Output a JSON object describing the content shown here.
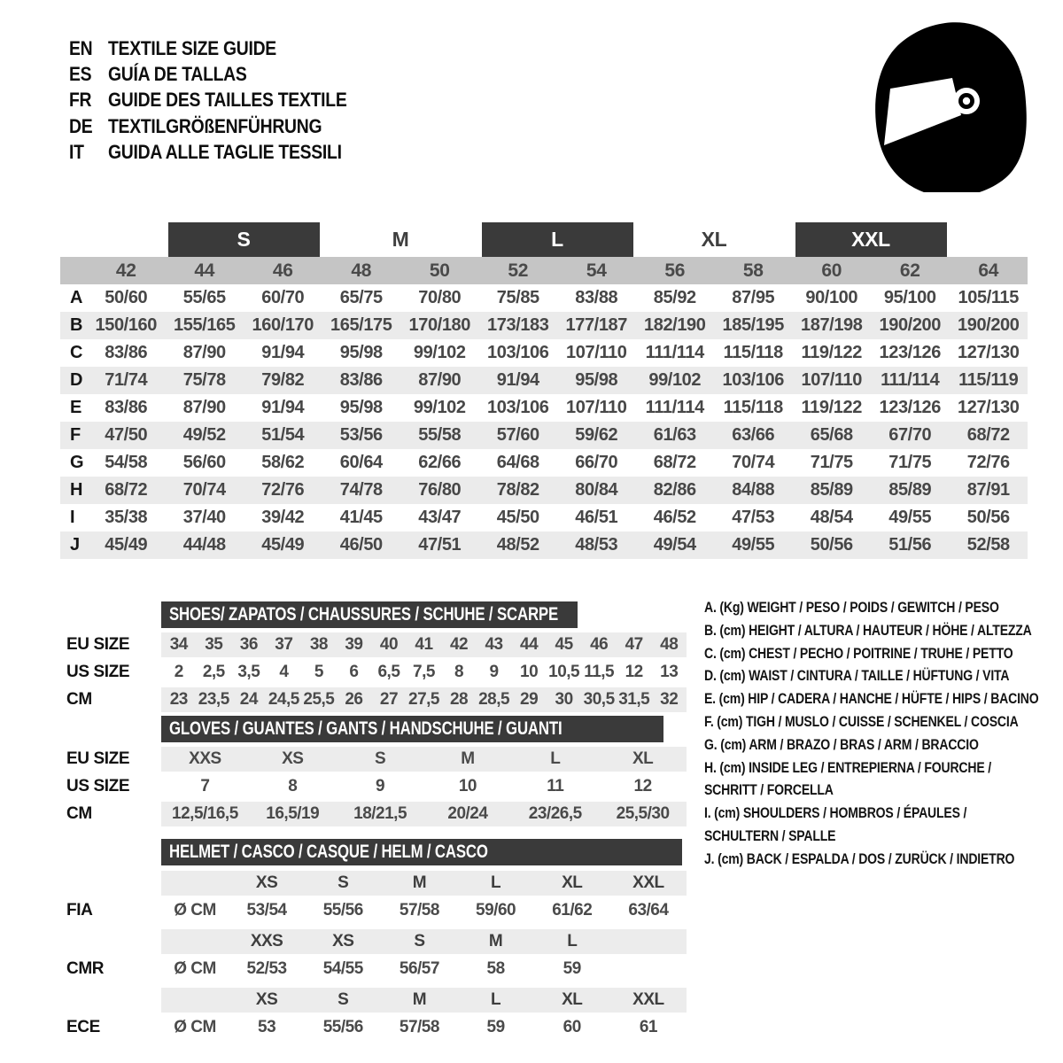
{
  "header": {
    "languages": [
      {
        "code": "EN",
        "title": "TEXTILE SIZE GUIDE"
      },
      {
        "code": "ES",
        "title": "GUÍA DE TALLAS"
      },
      {
        "code": "FR",
        "title": "GUIDE DES TAILLES TEXTILE"
      },
      {
        "code": "DE",
        "title": "TEXTILGRÖßENFÜHRUNG"
      },
      {
        "code": "IT",
        "title": "GUIDA ALLE TAGLIE TESSILI"
      }
    ],
    "icon": "racing-helmet"
  },
  "colors": {
    "bar": "#3a3a3a",
    "number_band": "#c5c5c5",
    "stripe": "#ebebeb",
    "bar_text": "#ffffff",
    "value_text": "#474747"
  },
  "size_table": {
    "size_bands": [
      {
        "label": "S",
        "style": "block"
      },
      {
        "label": "M",
        "style": "text"
      },
      {
        "label": "L",
        "style": "block"
      },
      {
        "label": "XL",
        "style": "text"
      },
      {
        "label": "XXL",
        "style": "block"
      }
    ],
    "columns": [
      "42",
      "44",
      "46",
      "48",
      "50",
      "52",
      "54",
      "56",
      "58",
      "60",
      "62",
      "64"
    ],
    "rows": [
      {
        "label": "A",
        "values": [
          "50/60",
          "55/65",
          "60/70",
          "65/75",
          "70/80",
          "75/85",
          "83/88",
          "85/92",
          "87/95",
          "90/100",
          "95/100",
          "105/115"
        ]
      },
      {
        "label": "B",
        "values": [
          "150/160",
          "155/165",
          "160/170",
          "165/175",
          "170/180",
          "173/183",
          "177/187",
          "182/190",
          "185/195",
          "187/198",
          "190/200",
          "190/200"
        ]
      },
      {
        "label": "C",
        "values": [
          "83/86",
          "87/90",
          "91/94",
          "95/98",
          "99/102",
          "103/106",
          "107/110",
          "111/114",
          "115/118",
          "119/122",
          "123/126",
          "127/130"
        ]
      },
      {
        "label": "D",
        "values": [
          "71/74",
          "75/78",
          "79/82",
          "83/86",
          "87/90",
          "91/94",
          "95/98",
          "99/102",
          "103/106",
          "107/110",
          "111/114",
          "115/119"
        ]
      },
      {
        "label": "E",
        "values": [
          "83/86",
          "87/90",
          "91/94",
          "95/98",
          "99/102",
          "103/106",
          "107/110",
          "111/114",
          "115/118",
          "119/122",
          "123/126",
          "127/130"
        ]
      },
      {
        "label": "F",
        "values": [
          "47/50",
          "49/52",
          "51/54",
          "53/56",
          "55/58",
          "57/60",
          "59/62",
          "61/63",
          "63/66",
          "65/68",
          "67/70",
          "68/72"
        ]
      },
      {
        "label": "G",
        "values": [
          "54/58",
          "56/60",
          "58/62",
          "60/64",
          "62/66",
          "64/68",
          "66/70",
          "68/72",
          "70/74",
          "71/75",
          "71/75",
          "72/76"
        ]
      },
      {
        "label": "H",
        "values": [
          "68/72",
          "70/74",
          "72/76",
          "74/78",
          "76/80",
          "78/82",
          "80/84",
          "82/86",
          "84/88",
          "85/89",
          "85/89",
          "87/91"
        ]
      },
      {
        "label": "I",
        "values": [
          "35/38",
          "37/40",
          "39/42",
          "41/45",
          "43/47",
          "45/50",
          "46/51",
          "46/52",
          "47/53",
          "48/54",
          "49/55",
          "50/56"
        ]
      },
      {
        "label": "J",
        "values": [
          "45/49",
          "44/48",
          "45/49",
          "46/50",
          "47/51",
          "48/52",
          "48/53",
          "49/54",
          "49/55",
          "50/56",
          "51/56",
          "52/58"
        ]
      }
    ]
  },
  "shoes_table": {
    "title": "SHOES/ ZAPATOS / CHAUSSURES / SCHUHE / SCARPE",
    "rows": [
      {
        "label": "EU SIZE",
        "values": [
          "34",
          "35",
          "36",
          "37",
          "38",
          "39",
          "40",
          "41",
          "42",
          "43",
          "44",
          "45",
          "46",
          "47",
          "48"
        ]
      },
      {
        "label": "US SIZE",
        "values": [
          "2",
          "2,5",
          "3,5",
          "4",
          "5",
          "6",
          "6,5",
          "7,5",
          "8",
          "9",
          "10",
          "10,5",
          "11,5",
          "12",
          "13"
        ]
      },
      {
        "label": "CM",
        "values": [
          "23",
          "23,5",
          "24",
          "24,5",
          "25,5",
          "26",
          "27",
          "27,5",
          "28",
          "28,5",
          "29",
          "30",
          "30,5",
          "31,5",
          "32"
        ]
      }
    ]
  },
  "gloves_table": {
    "title": "GLOVES / GUANTES / GANTS / HANDSCHUHE / GUANTI",
    "rows": [
      {
        "label": "EU SIZE",
        "values": [
          "XXS",
          "XS",
          "S",
          "M",
          "L",
          "XL"
        ]
      },
      {
        "label": "US SIZE",
        "values": [
          "7",
          "8",
          "9",
          "10",
          "11",
          "12"
        ]
      },
      {
        "label": "CM",
        "values": [
          "12,5/16,5",
          "16,5/19",
          "18/21,5",
          "20/24",
          "23/26,5",
          "25,5/30"
        ]
      }
    ]
  },
  "helmet_table": {
    "title": "HELMET / CASCO / CASQUE / HELM / CASCO",
    "sections": [
      {
        "label": "FIA",
        "unit": "Ø CM",
        "sizes": [
          "XS",
          "S",
          "M",
          "L",
          "XL",
          "XXL"
        ],
        "values": [
          "53/54",
          "55/56",
          "57/58",
          "59/60",
          "61/62",
          "63/64"
        ]
      },
      {
        "label": "CMR",
        "unit": "Ø CM",
        "sizes": [
          "XXS",
          "XS",
          "S",
          "M",
          "L",
          ""
        ],
        "values": [
          "52/53",
          "54/55",
          "56/57",
          "58",
          "59",
          ""
        ]
      },
      {
        "label": "ECE",
        "unit": "Ø CM",
        "sizes": [
          "XS",
          "S",
          "M",
          "L",
          "XL",
          "XXL"
        ],
        "values": [
          "53",
          "55/56",
          "57/58",
          "59",
          "60",
          "61"
        ]
      }
    ]
  },
  "legend": {
    "items": [
      {
        "key": "A.",
        "unit": "(Kg)",
        "text": "WEIGHT / PESO / POIDS / GEWITCH / PESO",
        "text2": ""
      },
      {
        "key": "B.",
        "unit": "(cm)",
        "text": "HEIGHT / ALTURA / HAUTEUR / HÖHE / ALTEZZA",
        "text2": ""
      },
      {
        "key": "C.",
        "unit": "(cm)",
        "text": "CHEST / PECHO / POITRINE / TRUHE / PETTO",
        "text2": ""
      },
      {
        "key": "D.",
        "unit": "(cm)",
        "text": "WAIST / CINTURA / TAILLE / HÜFTUNG / VITA",
        "text2": ""
      },
      {
        "key": "E.",
        "unit": "(cm)",
        "text": "HIP / CADERA / HANCHE / HÜFTE / HIPS / BACINO",
        "text2": ""
      },
      {
        "key": "F.",
        "unit": "(cm)",
        "text": "TIGH / MUSLO / CUISSE / SCHENKEL / COSCIA",
        "text2": ""
      },
      {
        "key": "G.",
        "unit": "(cm)",
        "text": "ARM / BRAZO / BRAS / ARM / BRACCIO",
        "text2": ""
      },
      {
        "key": "H.",
        "unit": "(cm)",
        "text": "INSIDE LEG / ENTREPIERNA / FOURCHE /",
        "text2": "SCHRITT / FORCELLA"
      },
      {
        "key": "I.",
        "unit": "(cm)",
        "text": "SHOULDERS / HOMBROS / ÉPAULES /",
        "text2": "SCHULTERN / SPALLE"
      },
      {
        "key": "J.",
        "unit": "(cm)",
        "text": "BACK / ESPALDA / DOS / ZURÜCK / INDIETRO",
        "text2": ""
      }
    ]
  }
}
